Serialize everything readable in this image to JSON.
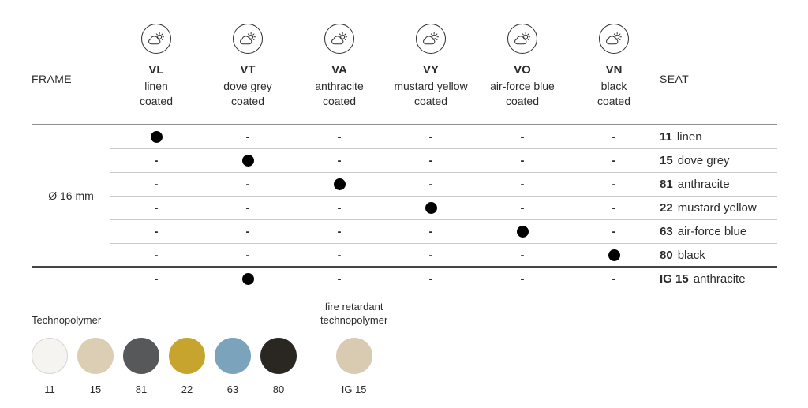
{
  "header": {
    "frame_label": "FRAME",
    "seat_label": "SEAT",
    "icon": "sun-behind-cloud",
    "columns": [
      {
        "code": "VL",
        "name": "linen",
        "finish": "coated"
      },
      {
        "code": "VT",
        "name": "dove grey",
        "finish": "coated"
      },
      {
        "code": "VA",
        "name": "anthracite",
        "finish": "coated"
      },
      {
        "code": "VY",
        "name": "mustard yellow",
        "finish": "coated"
      },
      {
        "code": "VO",
        "name": "air-force blue",
        "finish": "coated"
      },
      {
        "code": "VN",
        "name": "black",
        "finish": "coated"
      }
    ]
  },
  "matrix": {
    "frame_group_label": "Ø 16 mm",
    "dash_glyph": "-",
    "rows": [
      {
        "seat_code": "11",
        "seat_name": "linen",
        "group": "main",
        "compat": [
          true,
          false,
          false,
          false,
          false,
          false
        ]
      },
      {
        "seat_code": "15",
        "seat_name": "dove grey",
        "group": "main",
        "compat": [
          false,
          true,
          false,
          false,
          false,
          false
        ]
      },
      {
        "seat_code": "81",
        "seat_name": "anthracite",
        "group": "main",
        "compat": [
          false,
          false,
          true,
          false,
          false,
          false
        ]
      },
      {
        "seat_code": "22",
        "seat_name": "mustard yellow",
        "group": "main",
        "compat": [
          false,
          false,
          false,
          true,
          false,
          false
        ]
      },
      {
        "seat_code": "63",
        "seat_name": "air-force blue",
        "group": "main",
        "compat": [
          false,
          false,
          false,
          false,
          true,
          false
        ]
      },
      {
        "seat_code": "80",
        "seat_name": "black",
        "group": "main",
        "compat": [
          false,
          false,
          false,
          false,
          false,
          true
        ]
      },
      {
        "seat_code": "IG 15",
        "seat_name": "anthracite",
        "group": "fire",
        "compat": [
          false,
          true,
          false,
          false,
          false,
          false
        ]
      }
    ]
  },
  "swatches": {
    "group_label": "Technopolymer",
    "fire_group_label_line1": "fire retardant",
    "fire_group_label_line2": "technopolymer",
    "items": [
      {
        "code": "11",
        "color": "#f5f4f1",
        "border": "#d7d6d2"
      },
      {
        "code": "15",
        "color": "#dbceb5",
        "border": "#dbceb5"
      },
      {
        "code": "81",
        "color": "#57585a",
        "border": "#57585a"
      },
      {
        "code": "22",
        "color": "#c7a42e",
        "border": "#c7a42e"
      },
      {
        "code": "63",
        "color": "#7ba3bc",
        "border": "#7ba3bc"
      },
      {
        "code": "80",
        "color": "#2a2723",
        "border": "#2a2723"
      }
    ],
    "fire_item": {
      "code": "IG 15",
      "color": "#d8cbb2",
      "border": "#d8cbb2"
    }
  },
  "colors": {
    "dot": "#000000",
    "text": "#2b2b2b",
    "line_light": "#c9c9c9",
    "line_dark": "#444444",
    "line_header": "#8f8f8f"
  }
}
